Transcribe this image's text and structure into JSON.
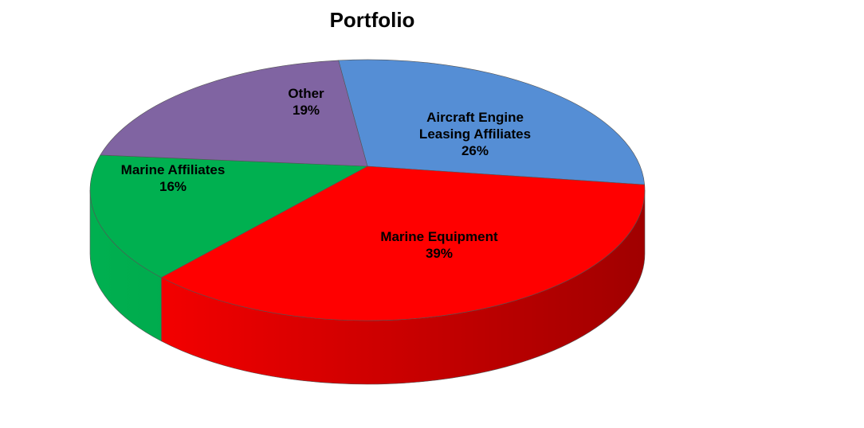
{
  "chart_data": {
    "type": "pie",
    "style": "3d",
    "title": "Portfolio",
    "slices": [
      {
        "label": "Aircraft Engine Leasing Affiliates",
        "label_lines": [
          "Aircraft Engine",
          "Leasing Affiliates"
        ],
        "value": 26,
        "pct_label": "26%",
        "color": "#558ED5",
        "side_color": "#2F5F9E"
      },
      {
        "label": "Marine Equipment",
        "label_lines": [
          "Marine Equipment"
        ],
        "value": 39,
        "pct_label": "39%",
        "color": "#FF0000",
        "side_color": "#A00000"
      },
      {
        "label": "Marine Affiliates",
        "label_lines": [
          "Marine Affiliates"
        ],
        "value": 16,
        "pct_label": "16%",
        "color": "#00B050",
        "side_color": "#008A3C"
      },
      {
        "label": "Other",
        "label_lines": [
          "Other"
        ],
        "value": 19,
        "pct_label": "19%",
        "color": "#8064A2",
        "side_color": "#5A4675"
      }
    ],
    "legend": "none"
  }
}
